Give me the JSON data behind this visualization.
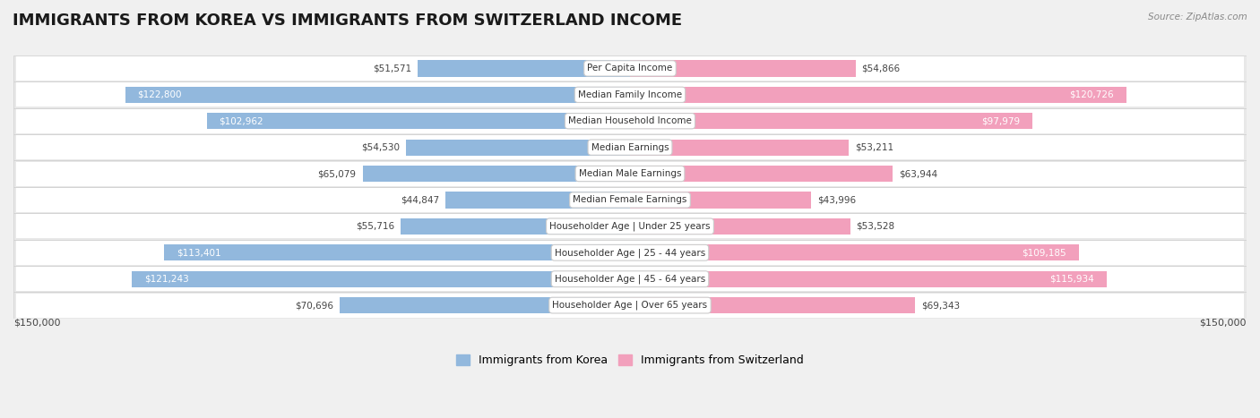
{
  "title": "IMMIGRANTS FROM KOREA VS IMMIGRANTS FROM SWITZERLAND INCOME",
  "source": "Source: ZipAtlas.com",
  "categories": [
    "Per Capita Income",
    "Median Family Income",
    "Median Household Income",
    "Median Earnings",
    "Median Male Earnings",
    "Median Female Earnings",
    "Householder Age | Under 25 years",
    "Householder Age | 25 - 44 years",
    "Householder Age | 45 - 64 years",
    "Householder Age | Over 65 years"
  ],
  "korea_values": [
    51571,
    122800,
    102962,
    54530,
    65079,
    44847,
    55716,
    113401,
    121243,
    70696
  ],
  "switzerland_values": [
    54866,
    120726,
    97979,
    53211,
    63944,
    43996,
    53528,
    109185,
    115934,
    69343
  ],
  "korea_color": "#92b8dd",
  "switzerland_color": "#f2a0bc",
  "inside_label_color": "#ffffff",
  "outside_label_color": "#444444",
  "max_value": 150000,
  "inside_threshold": 80000,
  "legend_korea": "Immigrants from Korea",
  "legend_switzerland": "Immigrants from Switzerland",
  "row_odd_color": "#f5f5f5",
  "row_even_color": "#e8e8e8",
  "row_border_color": "#d0d0d0",
  "bg_color": "#f0f0f0",
  "title_fontsize": 13,
  "label_fontsize": 7.5,
  "value_fontsize": 7.5,
  "axis_label_fontsize": 8,
  "legend_fontsize": 9
}
